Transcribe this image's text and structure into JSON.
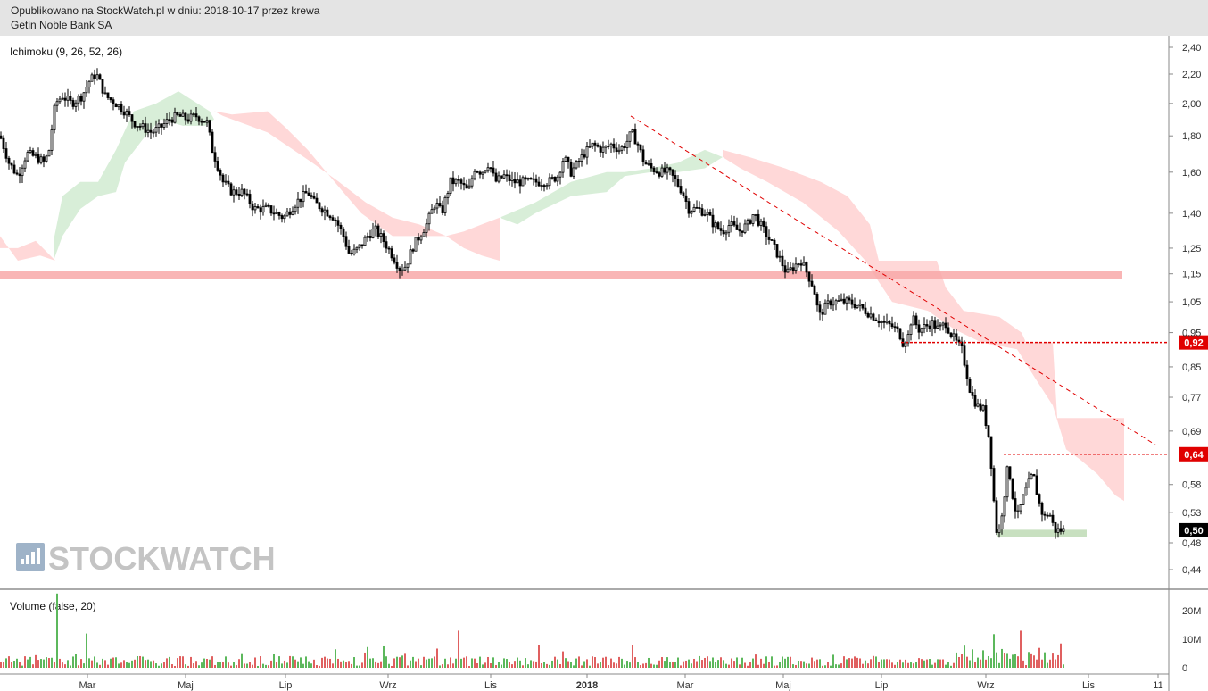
{
  "header": {
    "published": "Opublikowano na StockWatch.pl w dniu: 2018-10-17 przez krewa",
    "instrument": "Getin Noble Bank SA"
  },
  "watermark": "STOCKWATCH",
  "colors": {
    "candle": "#000000",
    "kumo_bull": "#d8eed8",
    "kumo_bear": "#ffd8d8",
    "support_band": "#f8a8a8",
    "level_line": "#e00000",
    "volume_up": "#5cb85c",
    "volume_down": "#e06060",
    "last_price_bg": "#000000",
    "level_label_bg": "#e00000"
  },
  "chart_data": [
    {
      "type": "candlestick",
      "indicator_label": "Ichimoku (9, 26, 52, 26)",
      "x_tick_labels": [
        "Mar",
        "Maj",
        "Lip",
        "Wrz",
        "Lis",
        "2018",
        "Mar",
        "Maj",
        "Lip",
        "Wrz",
        "Lis",
        "11"
      ],
      "y_tick_labels": [
        "2,40",
        "2,20",
        "2,00",
        "1,80",
        "1,60",
        "1,40",
        "1,25",
        "1,15",
        "1,05",
        "0,95",
        "0,85",
        "0,77",
        "0,69",
        "0,58",
        "0,53",
        "0,48",
        "0,44"
      ],
      "y_scale": "log",
      "ylim": [
        0.41,
        2.48
      ],
      "price_path": {
        "x": [
          0,
          10,
          20,
          30,
          40,
          50,
          55,
          62,
          70,
          80,
          92,
          100,
          108,
          118,
          130,
          140,
          150,
          160,
          170,
          180,
          190,
          200,
          210,
          220,
          232,
          238,
          245,
          250,
          260,
          272,
          285,
          300,
          318,
          332,
          345,
          352,
          362,
          375,
          385,
          392,
          402,
          412,
          420,
          430,
          440,
          448,
          455,
          462,
          470,
          478,
          488,
          495,
          505,
          515,
          525,
          532,
          540,
          548,
          555,
          565,
          575,
          585,
          595,
          605,
          615,
          625,
          632,
          640,
          648,
          655,
          665,
          675,
          685,
          695,
          702,
          708,
          715,
          722,
          730,
          740,
          750,
          758,
          765,
          772,
          782,
          792,
          800,
          810,
          818,
          828,
          838,
          845,
          852,
          860,
          868,
          875,
          882,
          890,
          898,
          905,
          912,
          918,
          922,
          930,
          940,
          950,
          960,
          970,
          980,
          990,
          1000,
          1008,
          1012,
          1018,
          1022,
          1030,
          1038,
          1045,
          1052,
          1060,
          1065,
          1072,
          1078,
          1082,
          1088,
          1095,
          1102,
          1108,
          1112,
          1116,
          1120,
          1125,
          1130,
          1135,
          1140,
          1146,
          1152,
          1158,
          1164,
          1170,
          1176,
          1182,
          1188,
          1192
        ],
        "close": [
          1.8,
          1.65,
          1.58,
          1.7,
          1.68,
          1.65,
          1.72,
          2.0,
          2.05,
          2.0,
          2.05,
          2.15,
          2.2,
          2.05,
          2.0,
          1.95,
          1.88,
          1.85,
          1.82,
          1.85,
          1.9,
          1.92,
          1.9,
          1.92,
          1.88,
          1.72,
          1.62,
          1.55,
          1.5,
          1.5,
          1.42,
          1.42,
          1.38,
          1.45,
          1.5,
          1.45,
          1.42,
          1.38,
          1.3,
          1.22,
          1.25,
          1.3,
          1.33,
          1.28,
          1.22,
          1.17,
          1.18,
          1.25,
          1.3,
          1.35,
          1.45,
          1.4,
          1.55,
          1.55,
          1.5,
          1.62,
          1.6,
          1.65,
          1.55,
          1.58,
          1.55,
          1.55,
          1.55,
          1.55,
          1.55,
          1.58,
          1.68,
          1.6,
          1.65,
          1.7,
          1.75,
          1.72,
          1.75,
          1.72,
          1.76,
          1.82,
          1.75,
          1.65,
          1.62,
          1.6,
          1.6,
          1.55,
          1.5,
          1.42,
          1.42,
          1.4,
          1.35,
          1.32,
          1.35,
          1.32,
          1.35,
          1.4,
          1.35,
          1.3,
          1.25,
          1.2,
          1.15,
          1.18,
          1.2,
          1.15,
          1.1,
          1.0,
          1.02,
          1.05,
          1.05,
          1.05,
          1.04,
          1.02,
          1.0,
          0.98,
          0.97,
          0.95,
          0.92,
          0.94,
          1.0,
          0.96,
          0.97,
          0.98,
          0.96,
          0.98,
          0.95,
          0.92,
          0.9,
          0.85,
          0.78,
          0.75,
          0.74,
          0.68,
          0.6,
          0.5,
          0.5,
          0.55,
          0.62,
          0.56,
          0.52,
          0.55,
          0.58,
          0.6,
          0.55,
          0.52,
          0.53,
          0.5,
          0.5,
          0.5
        ]
      },
      "cloud_green": [
        [
          60,
          1.28
        ],
        [
          70,
          1.48
        ],
        [
          90,
          1.55
        ],
        [
          110,
          1.55
        ],
        [
          130,
          1.72
        ],
        [
          150,
          1.95
        ],
        [
          175,
          2.0
        ],
        [
          200,
          2.08
        ],
        [
          235,
          1.95
        ],
        [
          240,
          1.9
        ],
        [
          230,
          1.86
        ],
        [
          205,
          1.86
        ],
        [
          180,
          1.9
        ],
        [
          160,
          1.78
        ],
        [
          140,
          1.65
        ],
        [
          130,
          1.5
        ],
        [
          110,
          1.48
        ],
        [
          90,
          1.42
        ],
        [
          70,
          1.3
        ],
        [
          60,
          1.2
        ]
      ],
      "cloud_red": [
        [
          0,
          1.3
        ],
        [
          20,
          1.2
        ],
        [
          45,
          1.22
        ],
        [
          62,
          1.2
        ],
        [
          40,
          1.28
        ],
        [
          20,
          1.25
        ],
        [
          0,
          1.25
        ]
      ],
      "cloud_red_2": [
        [
          240,
          1.95
        ],
        [
          260,
          1.93
        ],
        [
          300,
          1.95
        ],
        [
          320,
          1.85
        ],
        [
          345,
          1.72
        ],
        [
          375,
          1.55
        ],
        [
          405,
          1.4
        ],
        [
          440,
          1.3
        ],
        [
          470,
          1.3
        ],
        [
          500,
          1.3
        ],
        [
          520,
          1.32
        ],
        [
          540,
          1.35
        ],
        [
          560,
          1.38
        ],
        [
          560,
          1.2
        ],
        [
          540,
          1.22
        ],
        [
          520,
          1.25
        ],
        [
          500,
          1.3
        ],
        [
          470,
          1.35
        ],
        [
          440,
          1.38
        ],
        [
          410,
          1.45
        ],
        [
          380,
          1.55
        ],
        [
          350,
          1.65
        ],
        [
          320,
          1.75
        ],
        [
          300,
          1.82
        ],
        [
          270,
          1.88
        ],
        [
          250,
          1.92
        ]
      ],
      "cloud_green_2": [
        [
          560,
          1.38
        ],
        [
          600,
          1.45
        ],
        [
          640,
          1.55
        ],
        [
          680,
          1.6
        ],
        [
          700,
          1.6
        ],
        [
          730,
          1.62
        ],
        [
          760,
          1.65
        ],
        [
          790,
          1.72
        ],
        [
          810,
          1.68
        ],
        [
          790,
          1.62
        ],
        [
          760,
          1.6
        ],
        [
          730,
          1.6
        ],
        [
          700,
          1.58
        ],
        [
          680,
          1.5
        ],
        [
          640,
          1.48
        ],
        [
          600,
          1.4
        ],
        [
          580,
          1.35
        ]
      ],
      "cloud_red_3": [
        [
          810,
          1.72
        ],
        [
          840,
          1.68
        ],
        [
          880,
          1.62
        ],
        [
          920,
          1.55
        ],
        [
          950,
          1.48
        ],
        [
          975,
          1.35
        ],
        [
          985,
          1.2
        ],
        [
          1050,
          1.2
        ],
        [
          1060,
          1.1
        ],
        [
          1080,
          1.02
        ],
        [
          1120,
          1.0
        ],
        [
          1145,
          0.95
        ],
        [
          1150,
          0.92
        ],
        [
          1180,
          0.92
        ],
        [
          1185,
          0.72
        ],
        [
          1260,
          0.72
        ],
        [
          1260,
          0.55
        ],
        [
          1250,
          0.56
        ],
        [
          1230,
          0.6
        ],
        [
          1210,
          0.63
        ],
        [
          1195,
          0.65
        ],
        [
          1180,
          0.75
        ],
        [
          1160,
          0.82
        ],
        [
          1140,
          0.9
        ],
        [
          1100,
          0.92
        ],
        [
          1070,
          0.96
        ],
        [
          1040,
          1.02
        ],
        [
          1000,
          1.05
        ],
        [
          985,
          1.12
        ],
        [
          970,
          1.2
        ],
        [
          940,
          1.32
        ],
        [
          900,
          1.45
        ],
        [
          860,
          1.55
        ],
        [
          830,
          1.62
        ],
        [
          810,
          1.68
        ]
      ],
      "support_band": {
        "from": 1.13,
        "to": 1.16,
        "x_end": 1258
      },
      "trendline": [
        [
          707,
          1.92
        ],
        [
          1295,
          0.66
        ]
      ],
      "level_lines": [
        {
          "value": 0.92,
          "label": "0,92",
          "x_start": 1010
        },
        {
          "value": 0.64,
          "label": "0,64",
          "x_start": 1125
        }
      ],
      "last_price": {
        "value": 0.5,
        "label": "0,50"
      },
      "bottom_range": {
        "x0": 1118,
        "x1": 1218,
        "value": 0.495
      }
    },
    {
      "type": "bar",
      "indicator_label": "Volume (false, 20)",
      "y_tick_labels": [
        "20M",
        "10M",
        "0"
      ],
      "ylim": [
        0,
        26
      ],
      "unit": "M",
      "spikes": [
        {
          "x": 65,
          "value": 26
        },
        {
          "x": 98,
          "value": 12
        },
        {
          "x": 513,
          "value": 13
        },
        {
          "x": 605,
          "value": 8
        },
        {
          "x": 708,
          "value": 8
        },
        {
          "x": 1115,
          "value": 9
        },
        {
          "x": 1145,
          "value": 10
        },
        {
          "x": 1190,
          "value": 6
        }
      ]
    }
  ]
}
